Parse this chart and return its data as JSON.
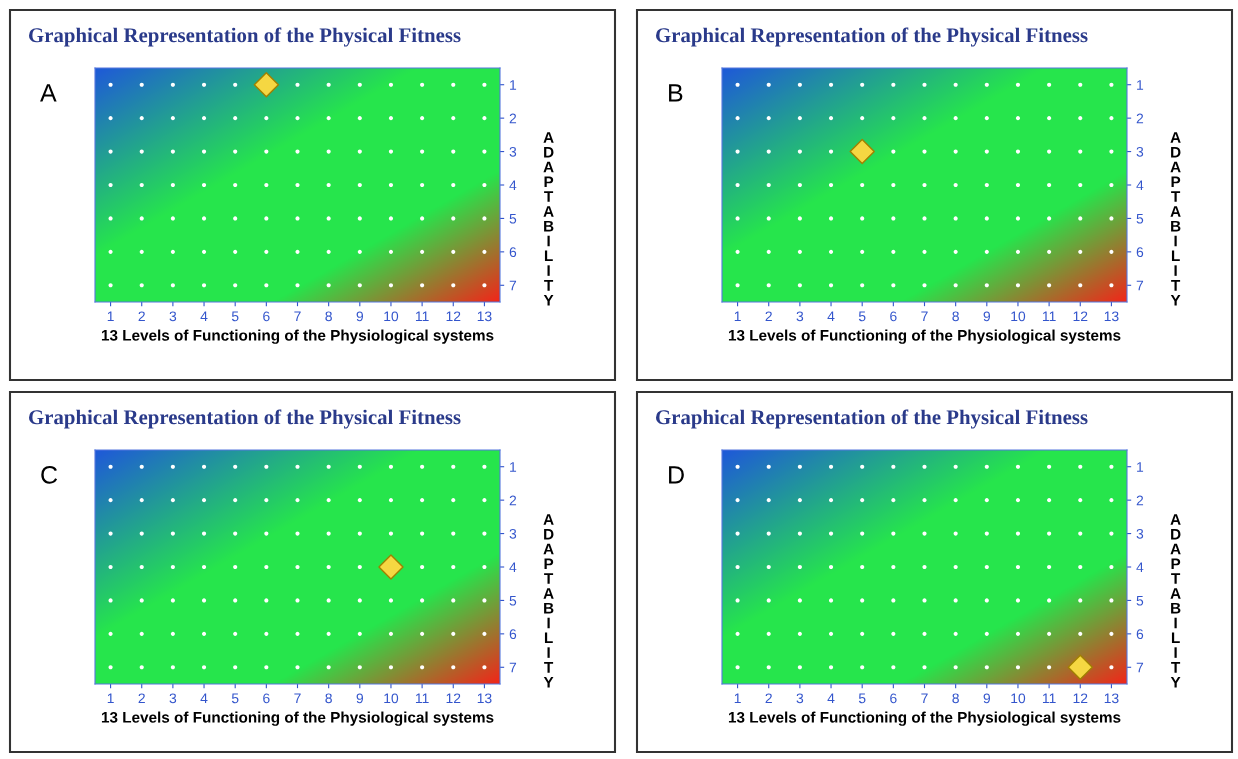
{
  "chart_data": [
    {
      "type": "scatter",
      "title": "Graphical Representation of the Physical Fitness",
      "xlabel": "13 Levels of Functioning of the Physiological systems",
      "ylabel": "ADAPTABILITY",
      "annotations": [
        "A"
      ],
      "xlim": [
        0.5,
        13.5
      ],
      "ylim": [
        7.5,
        0.5
      ],
      "xticks": [
        1,
        2,
        3,
        4,
        5,
        6,
        7,
        8,
        9,
        10,
        11,
        12,
        13
      ],
      "yticks": [
        1,
        2,
        3,
        4,
        5,
        6,
        7
      ],
      "series": [
        {
          "color": "#ffffff",
          "marker": "circle",
          "x": [
            1,
            2,
            3,
            4,
            5,
            6,
            7,
            8,
            9,
            10,
            11,
            12,
            13,
            1,
            2,
            3,
            4,
            5,
            6,
            7,
            8,
            9,
            10,
            11,
            12,
            13,
            1,
            2,
            3,
            4,
            5,
            6,
            7,
            8,
            9,
            10,
            11,
            12,
            13,
            1,
            2,
            3,
            4,
            5,
            6,
            7,
            8,
            9,
            10,
            11,
            12,
            13,
            1,
            2,
            3,
            4,
            5,
            6,
            7,
            8,
            9,
            10,
            11,
            12,
            13,
            1,
            2,
            3,
            4,
            5,
            6,
            7,
            8,
            9,
            10,
            11,
            12,
            13,
            1,
            2,
            3,
            4,
            5,
            6,
            7,
            8,
            9,
            10,
            11,
            12,
            13
          ],
          "values": [
            1,
            1,
            1,
            1,
            1,
            null,
            1,
            1,
            1,
            1,
            1,
            1,
            1,
            2,
            2,
            2,
            2,
            2,
            2,
            2,
            2,
            2,
            2,
            2,
            2,
            2,
            3,
            3,
            3,
            3,
            3,
            3,
            3,
            3,
            3,
            3,
            3,
            3,
            3,
            4,
            4,
            4,
            4,
            4,
            4,
            4,
            4,
            4,
            4,
            4,
            4,
            4,
            5,
            5,
            5,
            5,
            5,
            5,
            5,
            5,
            5,
            5,
            5,
            5,
            5,
            6,
            6,
            6,
            6,
            6,
            6,
            6,
            6,
            6,
            6,
            6,
            6,
            6,
            7,
            7,
            7,
            7,
            7,
            7,
            7,
            7,
            7,
            7,
            7,
            7,
            7
          ]
        },
        {
          "color": "#f5d742",
          "marker": "diamond",
          "x": [
            6
          ],
          "values": [
            1
          ]
        }
      ]
    },
    {
      "type": "scatter",
      "title": "Graphical Representation of the Physical Fitness",
      "xlabel": "13 Levels of Functioning of the Physiological systems",
      "ylabel": "ADAPTABILITY",
      "annotations": [
        "B"
      ],
      "xlim": [
        0.5,
        13.5
      ],
      "ylim": [
        7.5,
        0.5
      ],
      "xticks": [
        1,
        2,
        3,
        4,
        5,
        6,
        7,
        8,
        9,
        10,
        11,
        12,
        13
      ],
      "yticks": [
        1,
        2,
        3,
        4,
        5,
        6,
        7
      ],
      "series": [
        {
          "color": "#ffffff",
          "marker": "circle",
          "x": [
            1,
            2,
            3,
            4,
            5,
            6,
            7,
            8,
            9,
            10,
            11,
            12,
            13,
            1,
            2,
            3,
            4,
            5,
            6,
            7,
            8,
            9,
            10,
            11,
            12,
            13,
            1,
            2,
            3,
            4,
            5,
            6,
            7,
            8,
            9,
            10,
            11,
            12,
            13,
            1,
            2,
            3,
            4,
            5,
            6,
            7,
            8,
            9,
            10,
            11,
            12,
            13,
            1,
            2,
            3,
            4,
            5,
            6,
            7,
            8,
            9,
            10,
            11,
            12,
            13,
            1,
            2,
            3,
            4,
            5,
            6,
            7,
            8,
            9,
            10,
            11,
            12,
            13,
            1,
            2,
            3,
            4,
            5,
            6,
            7,
            8,
            9,
            10,
            11,
            12,
            13
          ],
          "values": [
            1,
            1,
            1,
            1,
            1,
            1,
            1,
            1,
            1,
            1,
            1,
            1,
            1,
            2,
            2,
            2,
            2,
            2,
            2,
            2,
            2,
            2,
            2,
            2,
            2,
            2,
            3,
            3,
            3,
            3,
            null,
            3,
            3,
            3,
            3,
            3,
            3,
            3,
            3,
            4,
            4,
            4,
            4,
            4,
            4,
            4,
            4,
            4,
            4,
            4,
            4,
            4,
            5,
            5,
            5,
            5,
            5,
            5,
            5,
            5,
            5,
            5,
            5,
            5,
            5,
            6,
            6,
            6,
            6,
            6,
            6,
            6,
            6,
            6,
            6,
            6,
            6,
            6,
            7,
            7,
            7,
            7,
            7,
            7,
            7,
            7,
            7,
            7,
            7,
            7,
            7
          ]
        },
        {
          "color": "#f5d742",
          "marker": "diamond",
          "x": [
            5
          ],
          "values": [
            3
          ]
        }
      ]
    },
    {
      "type": "scatter",
      "title": "Graphical Representation of the Physical Fitness",
      "xlabel": "13 Levels of Functioning of the Physiological systems",
      "ylabel": "ADAPTABILITY",
      "annotations": [
        "C"
      ],
      "xlim": [
        0.5,
        13.5
      ],
      "ylim": [
        7.5,
        0.5
      ],
      "xticks": [
        1,
        2,
        3,
        4,
        5,
        6,
        7,
        8,
        9,
        10,
        11,
        12,
        13
      ],
      "yticks": [
        1,
        2,
        3,
        4,
        5,
        6,
        7
      ],
      "series": [
        {
          "color": "#ffffff",
          "marker": "circle",
          "x": [
            1,
            2,
            3,
            4,
            5,
            6,
            7,
            8,
            9,
            10,
            11,
            12,
            13,
            1,
            2,
            3,
            4,
            5,
            6,
            7,
            8,
            9,
            10,
            11,
            12,
            13,
            1,
            2,
            3,
            4,
            5,
            6,
            7,
            8,
            9,
            10,
            11,
            12,
            13,
            1,
            2,
            3,
            4,
            5,
            6,
            7,
            8,
            9,
            10,
            11,
            12,
            13,
            1,
            2,
            3,
            4,
            5,
            6,
            7,
            8,
            9,
            10,
            11,
            12,
            13,
            1,
            2,
            3,
            4,
            5,
            6,
            7,
            8,
            9,
            10,
            11,
            12,
            13,
            1,
            2,
            3,
            4,
            5,
            6,
            7,
            8,
            9,
            10,
            11,
            12,
            13
          ],
          "values": [
            1,
            1,
            1,
            1,
            1,
            1,
            1,
            1,
            1,
            1,
            1,
            1,
            1,
            2,
            2,
            2,
            2,
            2,
            2,
            2,
            2,
            2,
            2,
            2,
            2,
            2,
            3,
            3,
            3,
            3,
            3,
            3,
            3,
            3,
            3,
            3,
            3,
            3,
            3,
            4,
            4,
            4,
            4,
            4,
            4,
            4,
            4,
            4,
            null,
            4,
            4,
            4,
            5,
            5,
            5,
            5,
            5,
            5,
            5,
            5,
            5,
            5,
            5,
            5,
            5,
            6,
            6,
            6,
            6,
            6,
            6,
            6,
            6,
            6,
            6,
            6,
            6,
            6,
            7,
            7,
            7,
            7,
            7,
            7,
            7,
            7,
            7,
            7,
            7,
            7,
            7
          ]
        },
        {
          "color": "#f5d742",
          "marker": "diamond",
          "x": [
            10
          ],
          "values": [
            4
          ]
        }
      ]
    },
    {
      "type": "scatter",
      "title": "Graphical Representation of the Physical Fitness",
      "xlabel": "13 Levels of Functioning of the Physiological systems",
      "ylabel": "ADAPTABILITY",
      "annotations": [
        "D"
      ],
      "xlim": [
        0.5,
        13.5
      ],
      "ylim": [
        7.5,
        0.5
      ],
      "xticks": [
        1,
        2,
        3,
        4,
        5,
        6,
        7,
        8,
        9,
        10,
        11,
        12,
        13
      ],
      "yticks": [
        1,
        2,
        3,
        4,
        5,
        6,
        7
      ],
      "series": [
        {
          "color": "#ffffff",
          "marker": "circle",
          "x": [
            1,
            2,
            3,
            4,
            5,
            6,
            7,
            8,
            9,
            10,
            11,
            12,
            13,
            1,
            2,
            3,
            4,
            5,
            6,
            7,
            8,
            9,
            10,
            11,
            12,
            13,
            1,
            2,
            3,
            4,
            5,
            6,
            7,
            8,
            9,
            10,
            11,
            12,
            13,
            1,
            2,
            3,
            4,
            5,
            6,
            7,
            8,
            9,
            10,
            11,
            12,
            13,
            1,
            2,
            3,
            4,
            5,
            6,
            7,
            8,
            9,
            10,
            11,
            12,
            13,
            1,
            2,
            3,
            4,
            5,
            6,
            7,
            8,
            9,
            10,
            11,
            12,
            13,
            1,
            2,
            3,
            4,
            5,
            6,
            7,
            8,
            9,
            10,
            11,
            12,
            13
          ],
          "values": [
            1,
            1,
            1,
            1,
            1,
            1,
            1,
            1,
            1,
            1,
            1,
            1,
            1,
            2,
            2,
            2,
            2,
            2,
            2,
            2,
            2,
            2,
            2,
            2,
            2,
            2,
            3,
            3,
            3,
            3,
            3,
            3,
            3,
            3,
            3,
            3,
            3,
            3,
            3,
            4,
            4,
            4,
            4,
            4,
            4,
            4,
            4,
            4,
            4,
            4,
            4,
            4,
            5,
            5,
            5,
            5,
            5,
            5,
            5,
            5,
            5,
            5,
            5,
            5,
            5,
            6,
            6,
            6,
            6,
            6,
            6,
            6,
            6,
            6,
            6,
            6,
            6,
            6,
            7,
            7,
            7,
            7,
            7,
            7,
            7,
            7,
            7,
            7,
            7,
            null,
            7
          ]
        },
        {
          "color": "#f5d742",
          "marker": "diamond",
          "x": [
            12
          ],
          "values": [
            7
          ]
        }
      ]
    }
  ]
}
